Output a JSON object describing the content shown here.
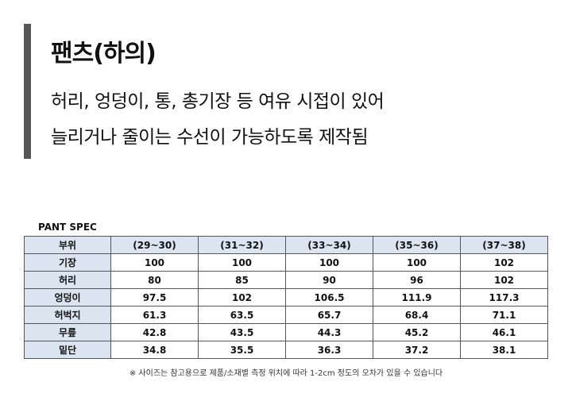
{
  "header": {
    "title": "팬츠(하의)",
    "lines": [
      "허리, 엉덩이, 통, 총기장 등 여유 시접이 있어",
      "늘리거나 줄이는 수선이 가능하도록 제작됨"
    ]
  },
  "table": {
    "caption": "PANT SPEC",
    "header": [
      "부위",
      "(29~30)",
      "(31~32)",
      "(33~34)",
      "(35~36)",
      "(37~38)"
    ],
    "rows": [
      [
        "기장",
        "100",
        "100",
        "100",
        "100",
        "102"
      ],
      [
        "허리",
        "80",
        "85",
        "90",
        "96",
        "102"
      ],
      [
        "엉덩이",
        "97.5",
        "102",
        "106.5",
        "111.9",
        "117.3"
      ],
      [
        "허벅지",
        "61.3",
        "63.5",
        "65.7",
        "68.4",
        "71.1"
      ],
      [
        "무릎",
        "42.8",
        "43.5",
        "44.3",
        "45.2",
        "46.1"
      ],
      [
        "밑단",
        "34.8",
        "35.5",
        "36.3",
        "37.2",
        "38.1"
      ]
    ],
    "note": "※ 사이즈는 참고용으로 제품/소재별 측정 위치에 따라 1-2cm 정도의 오차가 있을 수 있습니다"
  }
}
